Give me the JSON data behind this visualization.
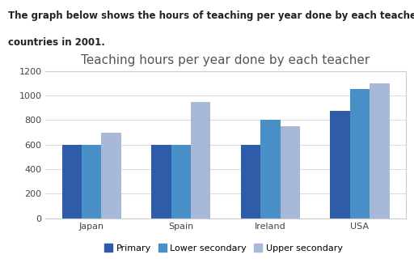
{
  "title": "Teaching hours per year done by each teacher",
  "header_line1": "The graph below shows the hours of teaching per year done by each teacher in four different",
  "header_line2": "countries in 2001.",
  "categories": [
    "Japan",
    "Spain",
    "Ireland",
    "USA"
  ],
  "series": {
    "Primary": [
      600,
      600,
      600,
      875
    ],
    "Lower secondary": [
      600,
      600,
      800,
      1050
    ],
    "Upper secondary": [
      700,
      950,
      750,
      1100
    ]
  },
  "legend_labels": [
    "Primary",
    "Lower secondary",
    "Upper secondary"
  ],
  "colors": {
    "Primary": "#2E5CA8",
    "Lower secondary": "#4A90C8",
    "Upper secondary": "#A8B8D8"
  },
  "ylim": [
    0,
    1200
  ],
  "yticks": [
    0,
    200,
    400,
    600,
    800,
    1000,
    1200
  ],
  "bar_width": 0.22,
  "background_color": "#ffffff",
  "chart_bg": "#ffffff",
  "grid_color": "#dddddd",
  "title_fontsize": 11,
  "tick_fontsize": 8,
  "legend_fontsize": 8,
  "header_fontsize": 8.5
}
